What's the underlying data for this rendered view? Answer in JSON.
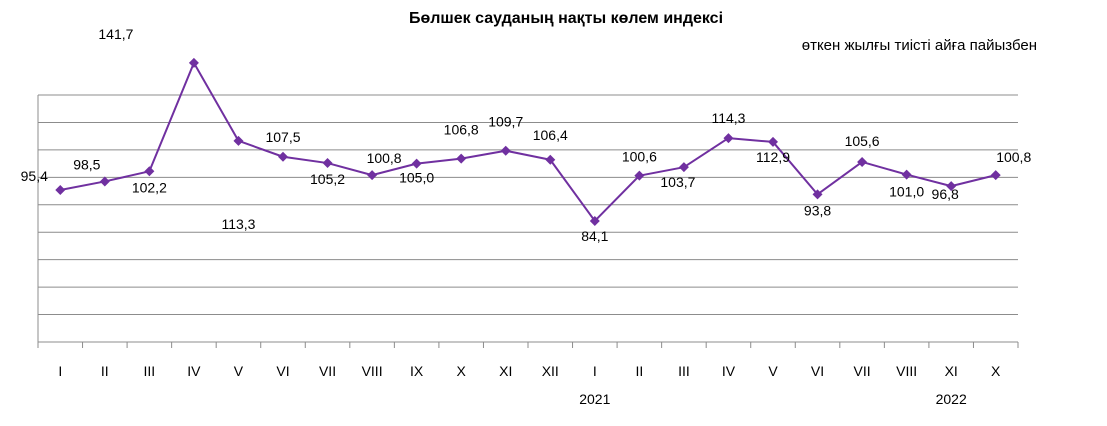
{
  "chart_data": {
    "type": "line",
    "title": "Бөлшек сауданың нақты көлем индексі",
    "subtitle": "өткен жылғы тиісті айға пайызбен",
    "categories": [
      "I",
      "II",
      "III",
      "IV",
      "V",
      "VI",
      "VII",
      "VIII",
      "IX",
      "X",
      "XI",
      "XII",
      "I",
      "II",
      "III",
      "IV",
      "V",
      "VI",
      "VII",
      "VIII",
      "XI",
      "X"
    ],
    "year_labels": [
      {
        "text": "2021",
        "category_index": 12
      },
      {
        "text": "2022",
        "category_index": 20
      }
    ],
    "series": [
      {
        "values": [
          95.4,
          98.5,
          102.2,
          141.7,
          113.3,
          107.5,
          105.2,
          100.8,
          105.0,
          106.8,
          109.7,
          106.4,
          84.1,
          100.6,
          103.7,
          114.3,
          112.9,
          93.8,
          105.6,
          101.0,
          96.8,
          100.8
        ],
        "labels": [
          "95,4",
          "98,5",
          "102,2",
          "141,7",
          "113,3",
          "107,5",
          "105,2",
          "100,8",
          "105,0",
          "106,8",
          "109,7",
          "106,4",
          "84,1",
          "100,6",
          "103,7",
          "114,3",
          "112,9",
          "93,8",
          "105,6",
          "101,0",
          "96,8",
          "100,8"
        ],
        "color": "#7030a0"
      }
    ],
    "ylim": [
      40,
      130
    ],
    "grid": true,
    "legend": "none"
  }
}
